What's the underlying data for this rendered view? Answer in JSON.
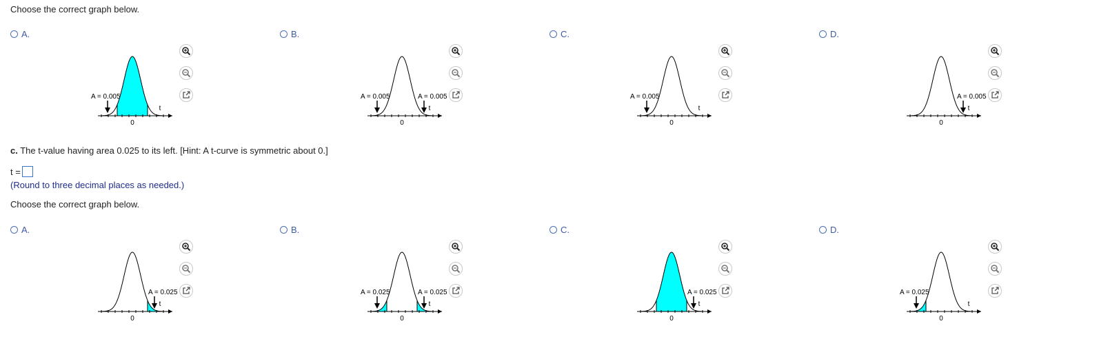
{
  "prompt_top": "Choose the correct graph below.",
  "prompt_bottom": "Choose the correct graph below.",
  "question_c": {
    "prefix": "c.",
    "text": " The t-value having area 0.025 to its left. [Hint: A t-curve is symmetric about 0.]"
  },
  "answer": {
    "label": "t =",
    "value": ""
  },
  "hint": "(Round to three decimal places as needed.)",
  "axis": {
    "zero_label": "0",
    "t_label": "t"
  },
  "colors": {
    "fill": "#00ffff",
    "radio": "#4a6fb5",
    "letter": "#3d5aa8",
    "hint": "#1f2d8a"
  },
  "tool_icons": [
    "zoom-in-icon",
    "zoom-out-icon",
    "popout-icon"
  ],
  "top_options": [
    {
      "letter": "A.",
      "left_label": "A = 0.005",
      "right_label": "",
      "shading": "center"
    },
    {
      "letter": "B.",
      "left_label": "A = 0.005",
      "right_label": "A = 0.005",
      "shading": "none"
    },
    {
      "letter": "C.",
      "left_label": "A = 0.005",
      "right_label": "",
      "shading": "none"
    },
    {
      "letter": "D.",
      "left_label": "",
      "right_label": "A = 0.005",
      "shading": "none"
    }
  ],
  "bottom_options": [
    {
      "letter": "A.",
      "left_label": "",
      "right_label": "A = 0.025",
      "shading": "right"
    },
    {
      "letter": "B.",
      "left_label": "A = 0.025",
      "right_label": "A = 0.025",
      "shading": "both"
    },
    {
      "letter": "C.",
      "left_label": "",
      "right_label": "A = 0.025",
      "shading": "center"
    },
    {
      "letter": "D.",
      "left_label": "A = 0.025",
      "right_label": "",
      "shading": "left"
    }
  ]
}
